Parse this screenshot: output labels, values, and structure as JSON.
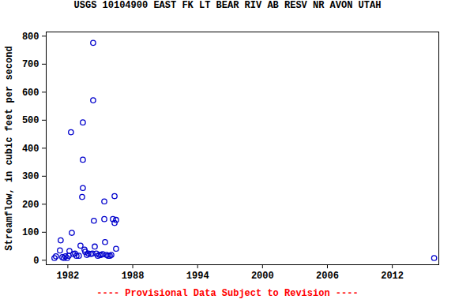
{
  "chart_data": {
    "type": "scatter",
    "title": "USGS 10104900 EAST FK LT BEAR RIV AB RESV NR AVON UTAH",
    "caption": "---- Provisional Data Subject to Revision ----",
    "y_label": "Streamflow, in cubic feet per second",
    "x": [
      1980.76,
      1980.9,
      1981.27,
      1981.34,
      1981.49,
      1981.63,
      1981.78,
      1981.93,
      1982.07,
      1982.15,
      1982.29,
      1982.37,
      1982.51,
      1982.66,
      1982.8,
      1983.02,
      1983.17,
      1983.32,
      1983.39,
      1983.39,
      1983.39,
      1983.54,
      1983.61,
      1983.76,
      1983.9,
      1984.12,
      1984.27,
      1984.34,
      1984.34,
      1984.41,
      1984.49,
      1984.63,
      1984.78,
      1984.93,
      1985.07,
      1985.22,
      1985.37,
      1985.37,
      1985.44,
      1985.58,
      1985.73,
      1985.88,
      1986.02,
      1986.17,
      1986.32,
      1986.32,
      1986.46,
      1986.46,
      2015.87
    ],
    "values": [
      8,
      14,
      35,
      71,
      11,
      8,
      14,
      8,
      16,
      33,
      457,
      98,
      22,
      24,
      16,
      16,
      52,
      226,
      258,
      359,
      492,
      38,
      30,
      19,
      24,
      22,
      24,
      776,
      571,
      141,
      49,
      24,
      16,
      19,
      19,
      22,
      210,
      147,
      65,
      19,
      16,
      16,
      19,
      147,
      133,
      229,
      144,
      41,
      8
    ],
    "color": "#0000cc",
    "marker": "open circle",
    "xlim": [
      1980,
      2016.3
    ],
    "xticks": [
      1982,
      1988,
      1994,
      2000,
      2006,
      2012
    ],
    "ylim": [
      -16,
      815
    ],
    "yticks": [
      0,
      100,
      200,
      300,
      400,
      500,
      600,
      700,
      800
    ],
    "grid": false
  }
}
